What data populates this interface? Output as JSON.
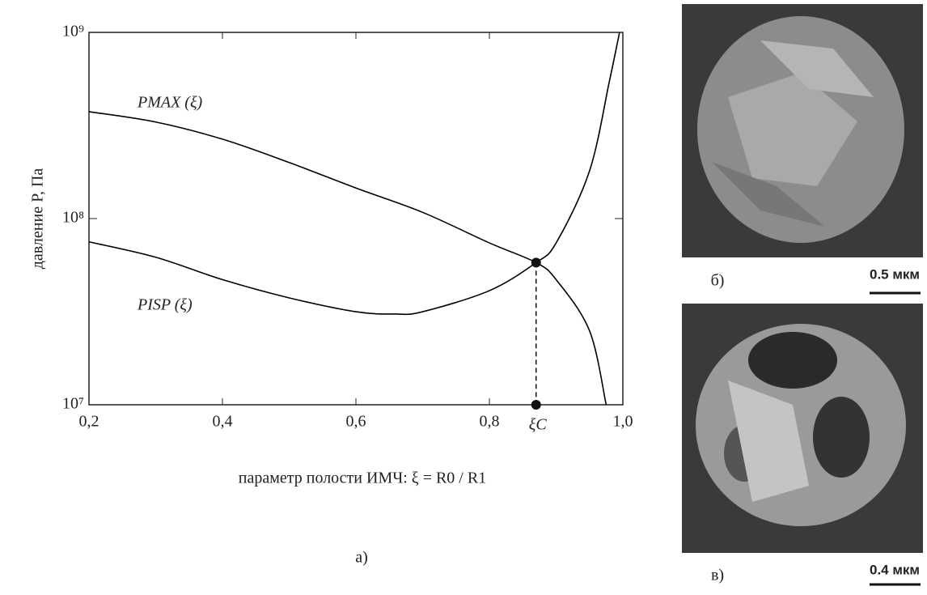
{
  "chart_data": {
    "type": "line",
    "xlabel": "параметр полости ИМЧ: ξ = R0 / R1",
    "ylabel": "давление P, Па",
    "panel_label": "а)",
    "log_y": true,
    "xlim": [
      0.2,
      1.0
    ],
    "ylim": [
      10000000,
      1000000000
    ],
    "xticks": [
      {
        "value": 0.2,
        "label": "0,2"
      },
      {
        "value": 0.4,
        "label": "0,4"
      },
      {
        "value": 0.6,
        "label": "0,6"
      },
      {
        "value": 0.8,
        "label": "0,8"
      },
      {
        "value": 1.0,
        "label": "1,0"
      }
    ],
    "yticks": [
      {
        "value": 10000000,
        "label": "10⁷"
      },
      {
        "value": 100000000,
        "label": "10⁸"
      },
      {
        "value": 1000000000,
        "label": "10⁹"
      }
    ],
    "series": [
      {
        "name": "PMAX (ξ)",
        "color": "#000000",
        "x": [
          0.2,
          0.3,
          0.4,
          0.5,
          0.6,
          0.7,
          0.8,
          0.87,
          0.9,
          0.95,
          0.975
        ],
        "values": [
          375000000,
          330000000,
          267000000,
          200000000,
          146000000,
          108000000,
          74000000,
          58000000,
          47000000,
          25000000,
          10000000
        ]
      },
      {
        "name": "PISP (ξ)",
        "color": "#000000",
        "x": [
          0.2,
          0.3,
          0.4,
          0.5,
          0.6,
          0.66,
          0.7,
          0.8,
          0.87,
          0.9,
          0.95,
          0.98,
          0.995
        ],
        "values": [
          75000000,
          62000000,
          47000000,
          37500000,
          31600000,
          30700000,
          31600000,
          41000000,
          58000000,
          74000000,
          180000000,
          550000000,
          1000000000
        ]
      }
    ],
    "critical_point": {
      "x": 0.87,
      "y": 58000000,
      "label": "ξC"
    }
  },
  "images": [
    {
      "label": "б)",
      "scale": "0.5 мкм"
    },
    {
      "label": "в)",
      "scale": "0.4 мкм"
    }
  ]
}
